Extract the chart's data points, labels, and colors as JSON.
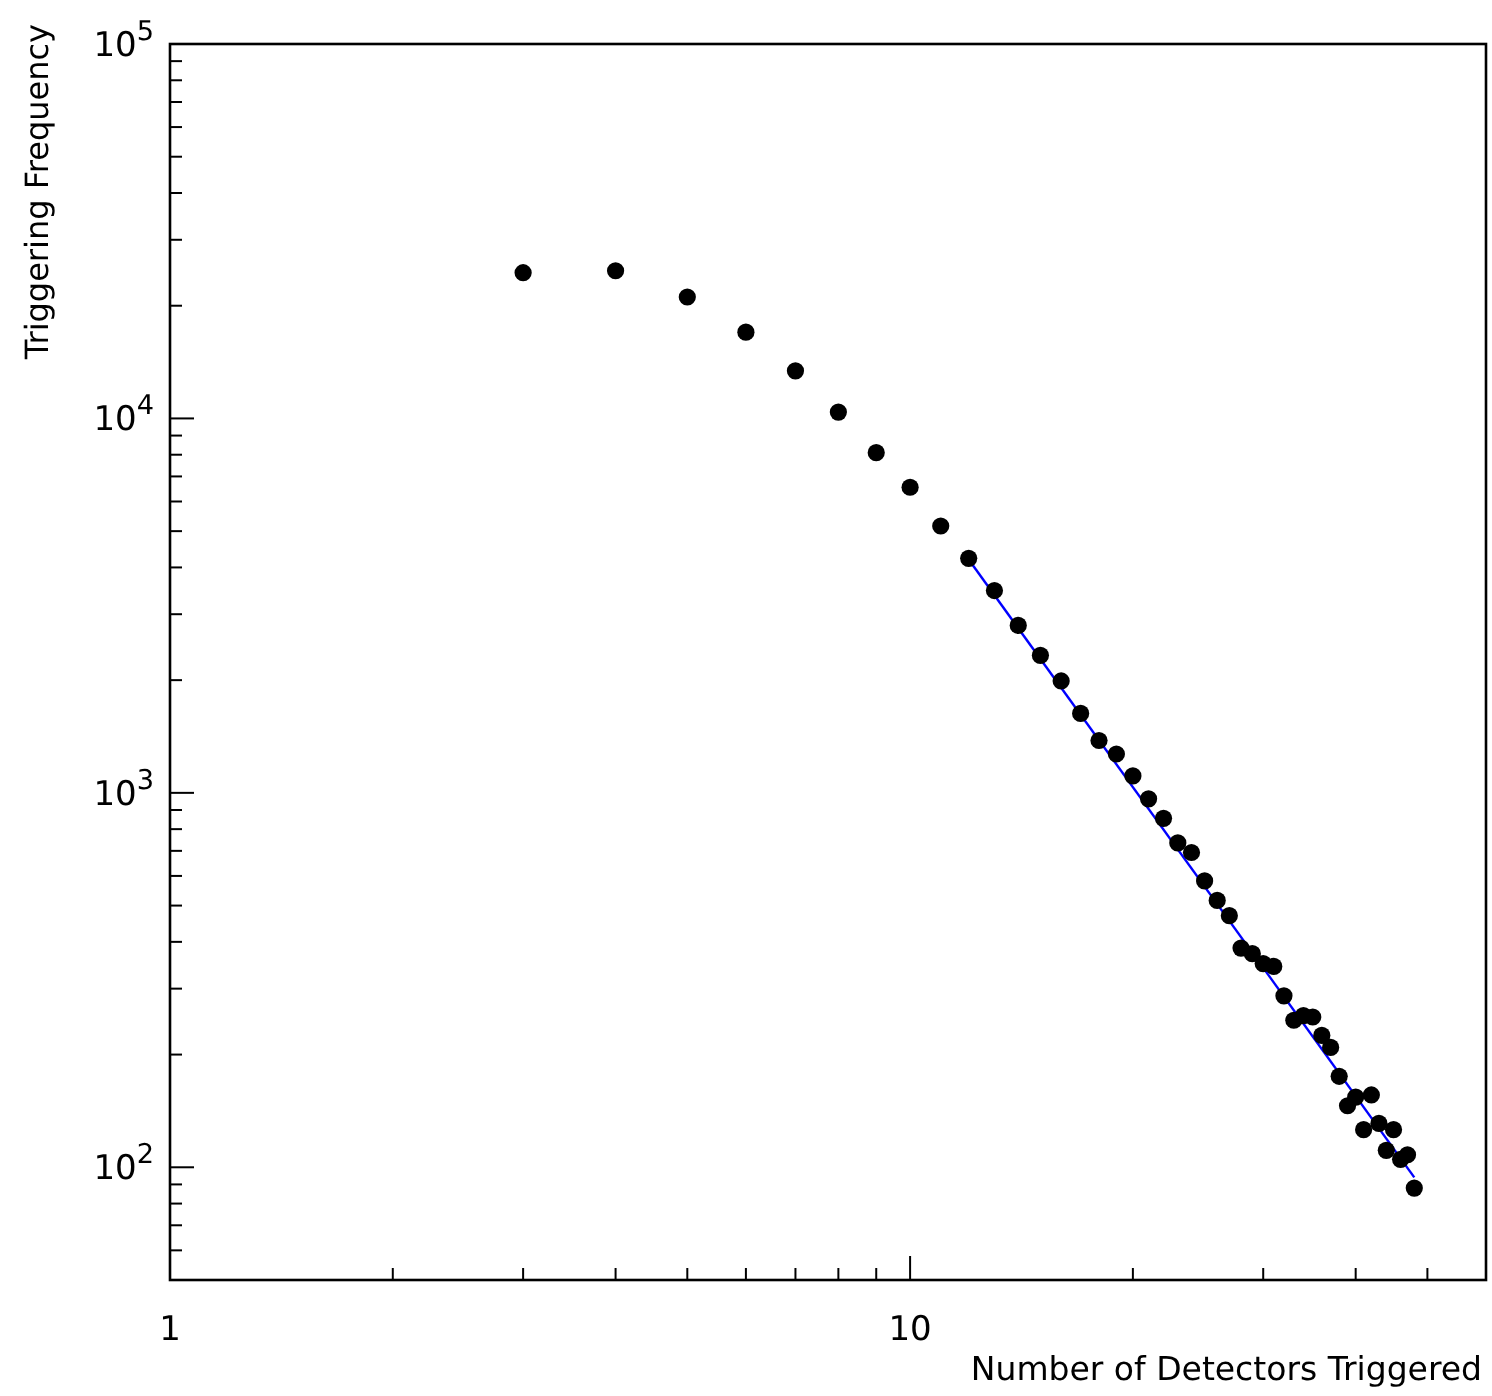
{
  "chart_data": {
    "type": "scatter",
    "xlabel": "Number of Detectors Triggered",
    "ylabel": "Triggering Frequency",
    "log": "xy",
    "grid": false,
    "marker": "circle",
    "xlim": [
      1,
      60
    ],
    "ylim": [
      50,
      100000
    ],
    "xticks": [
      1,
      {
        "value": 2,
        "label": null
      },
      {
        "value": 3,
        "label": null
      },
      {
        "value": 4,
        "label": null
      },
      {
        "value": 5,
        "label": null
      },
      {
        "value": 6,
        "label": null
      },
      {
        "value": 7,
        "label": null
      },
      {
        "value": 8,
        "label": null
      },
      {
        "value": 9,
        "label": null
      },
      10,
      {
        "value": 20,
        "label": null
      },
      {
        "value": 30,
        "label": null
      },
      {
        "value": 40,
        "label": null
      },
      {
        "value": 50,
        "label": null
      }
    ],
    "yticks": [
      {
        "value": 60,
        "label": null
      },
      {
        "value": 70,
        "label": null
      },
      {
        "value": 80,
        "label": null
      },
      {
        "value": 90,
        "label": null
      },
      {
        "value": 100,
        "label": "10$^{2}$"
      },
      {
        "value": 200,
        "label": null
      },
      {
        "value": 300,
        "label": null
      },
      {
        "value": 400,
        "label": null
      },
      {
        "value": 500,
        "label": null
      },
      {
        "value": 600,
        "label": null
      },
      {
        "value": 700,
        "label": null
      },
      {
        "value": 800,
        "label": null
      },
      {
        "value": 900,
        "label": null
      },
      {
        "value": 1000,
        "label": "10$^{3}$"
      },
      {
        "value": 2000,
        "label": null
      },
      {
        "value": 3000,
        "label": null
      },
      {
        "value": 4000,
        "label": null
      },
      {
        "value": 5000,
        "label": null
      },
      {
        "value": 6000,
        "label": null
      },
      {
        "value": 7000,
        "label": null
      },
      {
        "value": 8000,
        "label": null
      },
      {
        "value": 9000,
        "label": null
      },
      {
        "value": 10000,
        "label": "10$^{4}$"
      },
      {
        "value": 20000,
        "label": null
      },
      {
        "value": 30000,
        "label": null
      },
      {
        "value": 40000,
        "label": null
      },
      {
        "value": 50000,
        "label": null
      },
      {
        "value": 60000,
        "label": null
      },
      {
        "value": 70000,
        "label": null
      },
      {
        "value": 80000,
        "label": null
      },
      {
        "value": 90000,
        "label": null
      },
      {
        "value": 100000,
        "label": "10$^{5}$"
      }
    ],
    "series": [
      {
        "color": "#000000",
        "x": [
          3,
          4,
          5,
          6,
          7,
          8,
          9,
          10,
          11,
          12,
          13,
          14,
          15,
          16,
          17,
          18,
          19,
          20,
          21,
          22,
          23,
          24,
          25,
          26,
          27,
          28,
          29,
          30,
          31,
          32,
          33,
          34,
          35,
          36,
          37,
          38,
          39,
          40,
          41,
          42,
          43,
          44,
          45,
          46,
          47,
          48
        ],
        "values": [
          24500,
          24800,
          21100,
          17000,
          13400,
          10400,
          8100,
          6550,
          5160,
          4230,
          3470,
          2800,
          2330,
          1990,
          1630,
          1380,
          1270,
          1110,
          964,
          855,
          735,
          693,
          582,
          516,
          470,
          385,
          372,
          350,
          344,
          287,
          247,
          254,
          252,
          225,
          209,
          175,
          146,
          154,
          126,
          156,
          131,
          111,
          126,
          105,
          108,
          88
        ]
      },
      {
        "type": "line",
        "color": "#0000ff",
        "marker": "none",
        "x": [
          12,
          48
        ],
        "values": [
          4200,
          94
        ]
      }
    ]
  }
}
